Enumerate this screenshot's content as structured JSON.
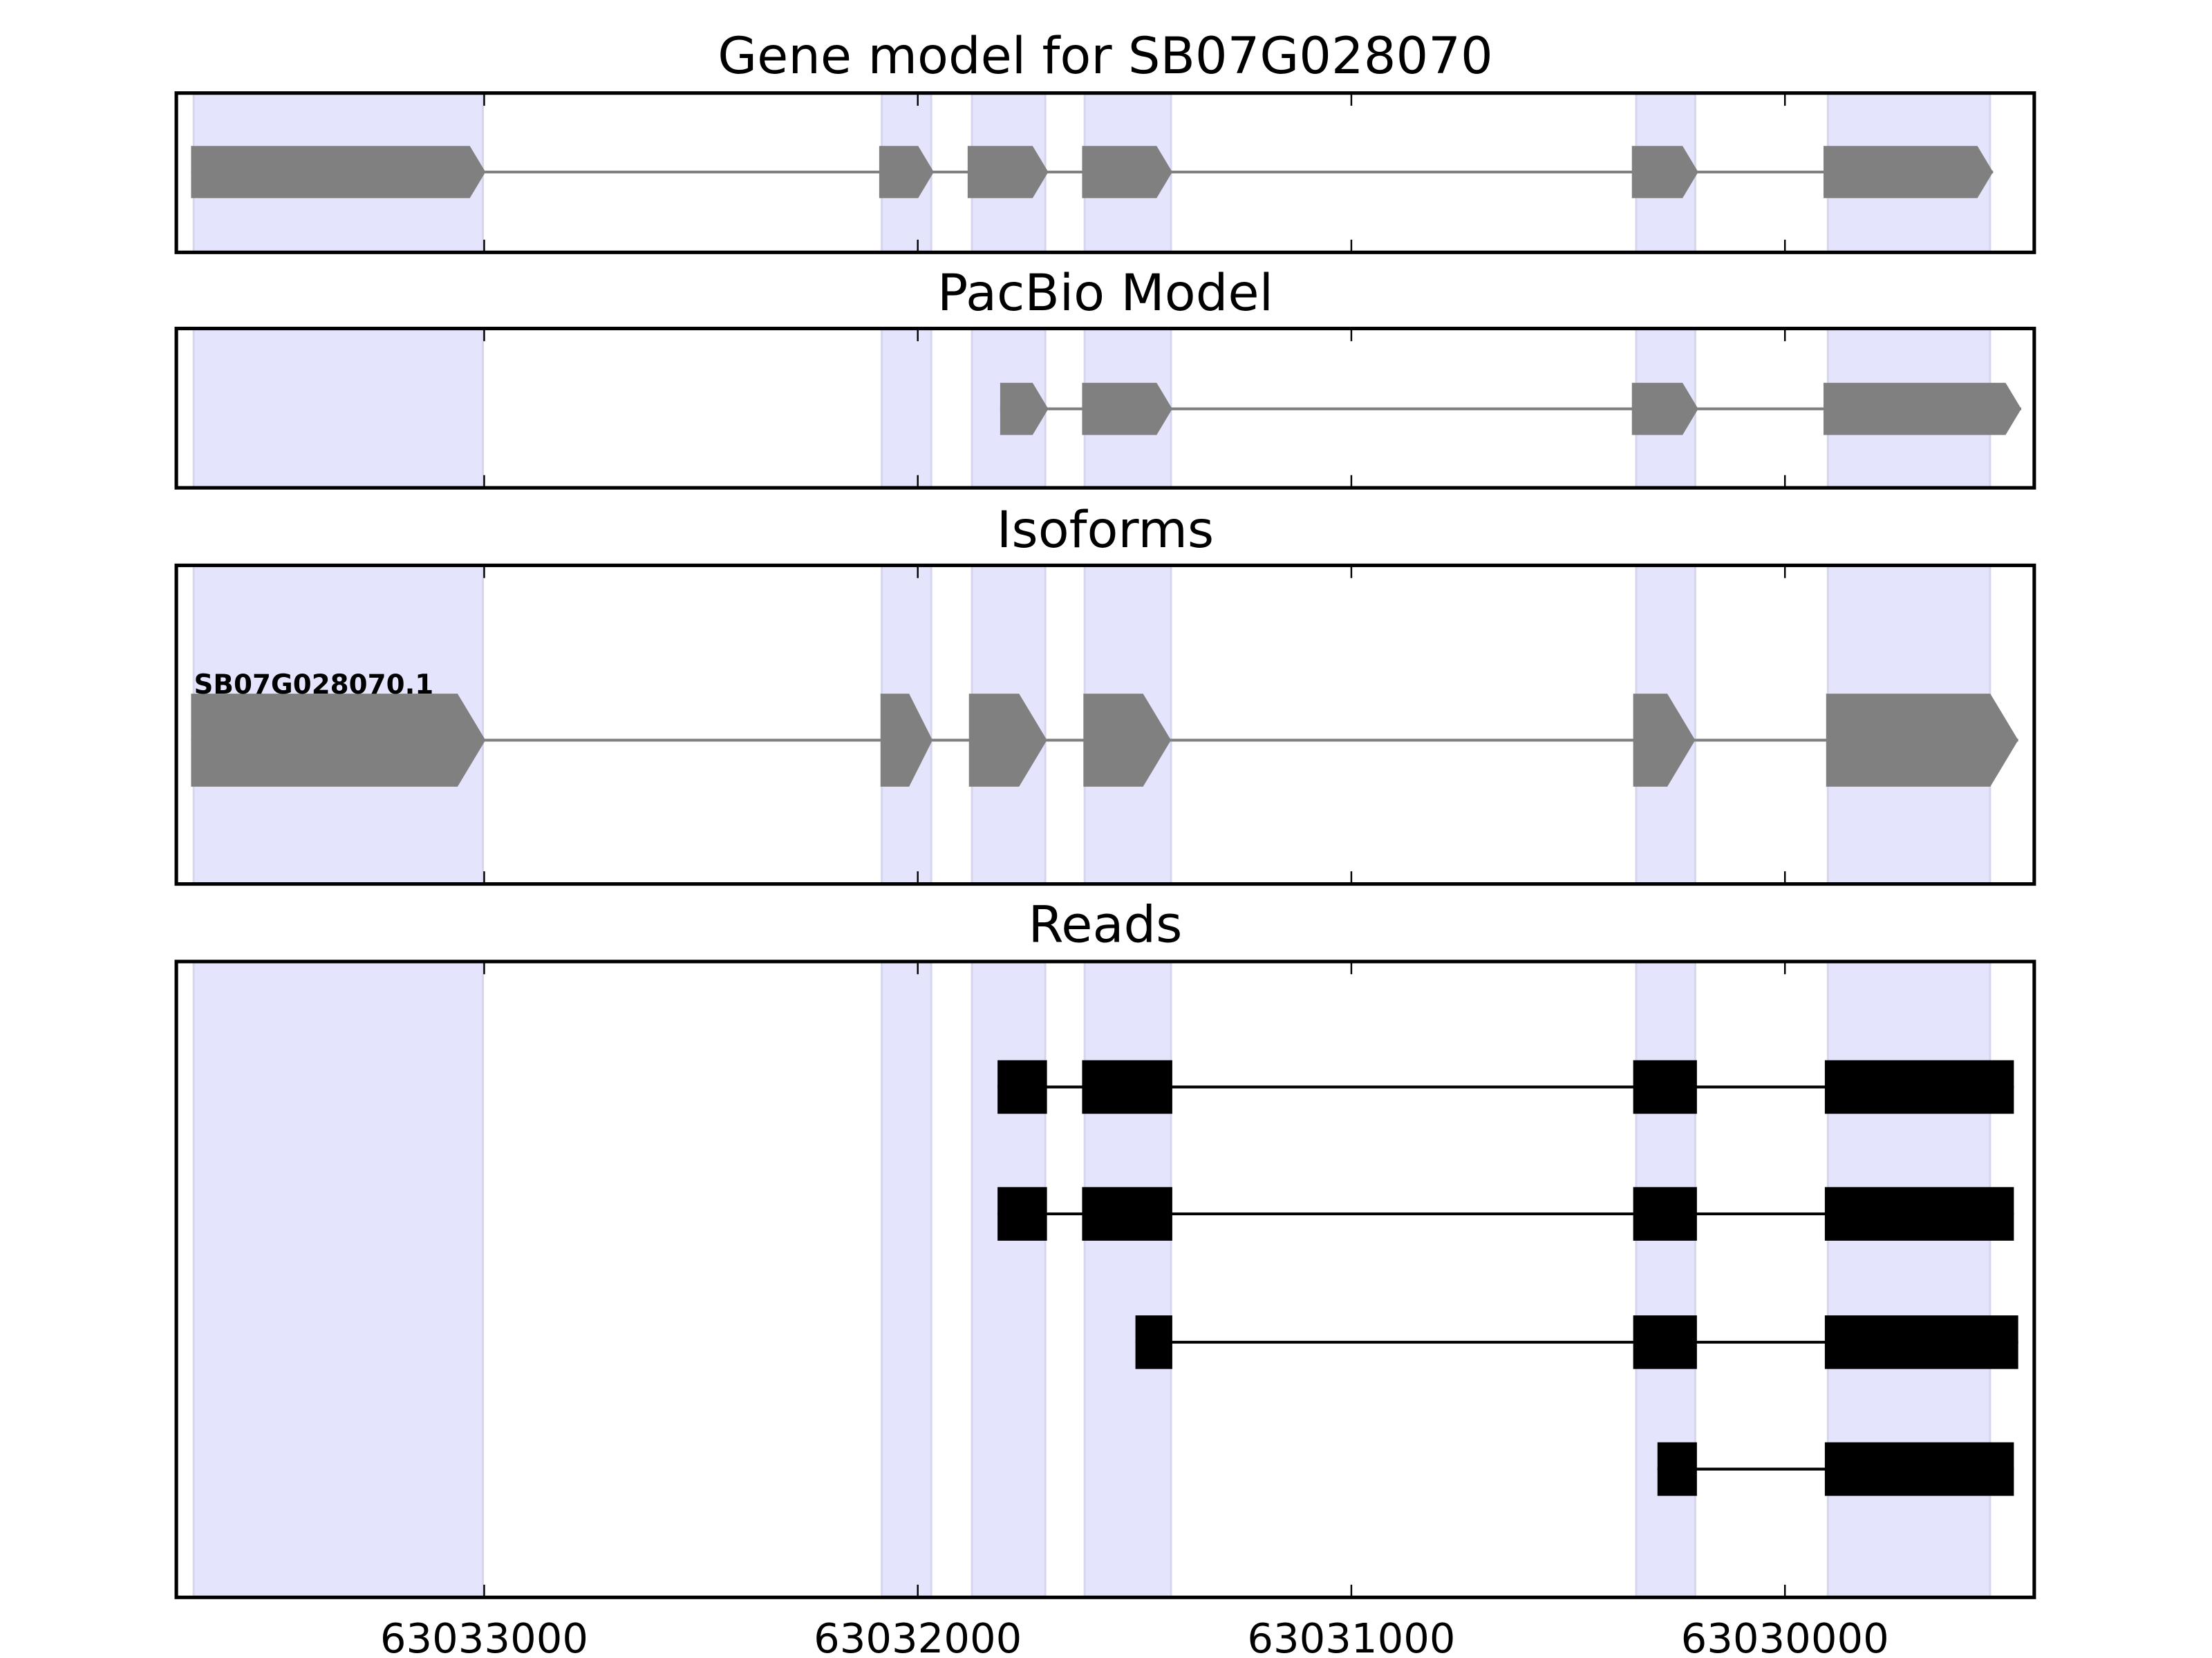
{
  "chart_data": {
    "type": "gene-track",
    "xaxis": {
      "xlim": [
        63033710,
        63029425
      ],
      "inverted": true,
      "ticks": [
        63033000,
        63032000,
        63031000,
        63030000
      ],
      "tick_labels": [
        "63033000",
        "63032000",
        "63031000",
        "63030000"
      ]
    },
    "highlight_color": "#e4e4fc",
    "highlight_regions": [
      [
        63033670,
        63033003
      ],
      [
        63032083,
        63031969
      ],
      [
        63031875,
        63031706
      ],
      [
        63031615,
        63031416
      ],
      [
        63030343,
        63030207
      ],
      [
        63029901,
        63029527
      ]
    ],
    "panels": [
      {
        "title": "Gene model for SB07G028070",
        "style": "arrow",
        "color": "#808080",
        "tracks": [
          {
            "label": "",
            "exons": [
              [
                63033676,
                63032997
              ],
              [
                63032089,
                63031963
              ],
              [
                63031885,
                63031699
              ],
              [
                63031621,
                63031413
              ],
              [
                63030353,
                63030200
              ],
              [
                63029911,
                63029520
              ]
            ]
          }
        ]
      },
      {
        "title": "PacBio Model",
        "style": "arrow",
        "color": "#808080",
        "tracks": [
          {
            "label": "",
            "exons": [
              [
                63031810,
                63031699
              ],
              [
                63031621,
                63031413
              ],
              [
                63030353,
                63030200
              ],
              [
                63029911,
                63029455
              ]
            ]
          }
        ]
      },
      {
        "title": "Isoforms",
        "style": "arrow",
        "color": "#808080",
        "tracks": [
          {
            "label": "SB07G028070.1",
            "exons": [
              [
                63033676,
                63032997
              ],
              [
                63032086,
                63031966
              ],
              [
                63031882,
                63031702
              ],
              [
                63031618,
                63031416
              ],
              [
                63030350,
                63030207
              ],
              [
                63029905,
                63029462
              ]
            ]
          }
        ]
      },
      {
        "title": "Reads",
        "style": "box",
        "color": "#000000",
        "tracks": [
          {
            "label": "",
            "exons": [
              [
                63031816,
                63031702
              ],
              [
                63031621,
                63031413
              ],
              [
                63030350,
                63030203
              ],
              [
                63029908,
                63029472
              ]
            ]
          },
          {
            "label": "",
            "exons": [
              [
                63031816,
                63031702
              ],
              [
                63031621,
                63031413
              ],
              [
                63030350,
                63030203
              ],
              [
                63029908,
                63029472
              ]
            ]
          },
          {
            "label": "",
            "exons": [
              [
                63031498,
                63031413
              ],
              [
                63030350,
                63030203
              ],
              [
                63029908,
                63029462
              ]
            ]
          },
          {
            "label": "",
            "exons": [
              [
                63030294,
                63030203
              ],
              [
                63029908,
                63029472
              ]
            ]
          }
        ]
      }
    ]
  }
}
